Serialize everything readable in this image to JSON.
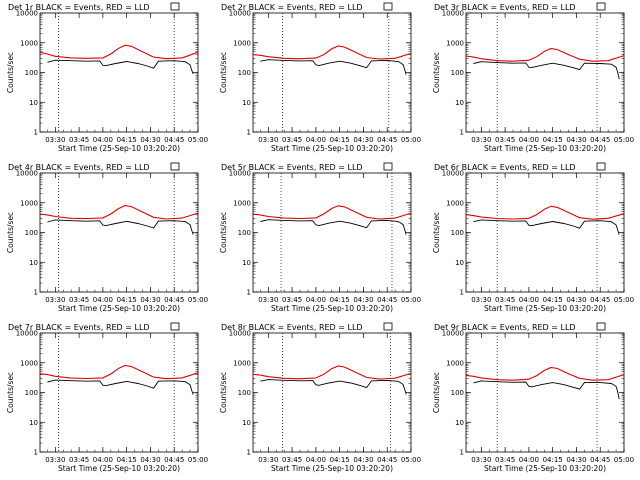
{
  "figure": {
    "xlabel": "Start Time (25-Sep-10 03:20:20)",
    "ylabel": "Counts/sec",
    "x_tick_labels": [
      "03:30",
      "03:45",
      "04:00",
      "04:15",
      "04:30",
      "04:45",
      "05:00"
    ],
    "y_tick_labels": [
      "1",
      "10",
      "100",
      "1000",
      "10000"
    ],
    "colors": {
      "events": "#000000",
      "lld": "#e00000",
      "axes": "#000000",
      "background": "#ffffff"
    }
  },
  "chart_data": [
    {
      "type": "line",
      "title": "Det 1r BLACK = Events, RED = LLD",
      "y_scale": "log",
      "ylim": [
        1,
        10000
      ],
      "x_range": [
        "03:20:20",
        "05:00:00"
      ],
      "vlines": [
        "03:32",
        "04:45"
      ],
      "grid": false,
      "series": [
        {
          "name": "Events",
          "color": "#000000",
          "x": [
            "03:25",
            "03:30",
            "03:40",
            "03:50",
            "03:58",
            "04:00",
            "04:02",
            "04:08",
            "04:15",
            "04:22",
            "04:28",
            "04:32",
            "04:35",
            "04:45",
            "04:52",
            "04:55",
            "04:56",
            "04:57"
          ],
          "values": [
            220,
            260,
            250,
            240,
            245,
            175,
            170,
            200,
            235,
            200,
            165,
            140,
            240,
            250,
            230,
            180,
            120,
            90
          ]
        },
        {
          "name": "LLD",
          "color": "#e00000",
          "x": [
            "03:20",
            "03:25",
            "03:30",
            "03:40",
            "03:50",
            "04:00",
            "04:05",
            "04:10",
            "04:14",
            "04:18",
            "04:25",
            "04:32",
            "04:40",
            "04:50",
            "05:00"
          ],
          "values": [
            480,
            420,
            350,
            310,
            300,
            310,
            420,
            650,
            830,
            760,
            500,
            330,
            290,
            310,
            480
          ]
        }
      ]
    },
    {
      "type": "line",
      "title": "Det 2r BLACK = Events, RED = LLD",
      "y_scale": "log",
      "ylim": [
        1,
        10000
      ],
      "x_range": [
        "03:20:20",
        "05:00:00"
      ],
      "vlines": [
        "03:39",
        "04:46"
      ],
      "grid": false,
      "series": [
        {
          "name": "Events",
          "color": "#000000",
          "x": [
            "03:25",
            "03:30",
            "03:40",
            "03:50",
            "03:58",
            "04:00",
            "04:02",
            "04:08",
            "04:15",
            "04:22",
            "04:28",
            "04:32",
            "04:35",
            "04:45",
            "04:52",
            "04:55",
            "04:56",
            "04:57"
          ],
          "values": [
            240,
            270,
            255,
            245,
            250,
            180,
            172,
            205,
            240,
            205,
            168,
            145,
            245,
            255,
            235,
            185,
            125,
            85
          ]
        },
        {
          "name": "LLD",
          "color": "#e00000",
          "x": [
            "03:20",
            "03:25",
            "03:30",
            "03:40",
            "03:50",
            "04:00",
            "04:05",
            "04:10",
            "04:14",
            "04:18",
            "04:25",
            "04:32",
            "04:40",
            "04:50",
            "05:00"
          ],
          "values": [
            400,
            380,
            340,
            300,
            290,
            305,
            400,
            620,
            780,
            720,
            480,
            320,
            285,
            300,
            440
          ]
        }
      ]
    },
    {
      "type": "line",
      "title": "Det 3r BLACK = Events, RED = LLD",
      "y_scale": "log",
      "ylim": [
        1,
        10000
      ],
      "x_range": [
        "03:20:20",
        "05:00:00"
      ],
      "vlines": [
        "03:40",
        "04:43"
      ],
      "grid": false,
      "series": [
        {
          "name": "Events",
          "color": "#000000",
          "x": [
            "03:25",
            "03:30",
            "03:40",
            "03:50",
            "03:58",
            "04:00",
            "04:02",
            "04:08",
            "04:15",
            "04:22",
            "04:28",
            "04:32",
            "04:35",
            "04:45",
            "04:52",
            "04:55",
            "04:56",
            "04:57"
          ],
          "values": [
            200,
            230,
            215,
            205,
            210,
            150,
            148,
            175,
            205,
            175,
            145,
            125,
            205,
            200,
            190,
            150,
            100,
            60
          ]
        },
        {
          "name": "LLD",
          "color": "#e00000",
          "x": [
            "03:20",
            "03:25",
            "03:30",
            "03:40",
            "03:50",
            "04:00",
            "04:05",
            "04:10",
            "04:14",
            "04:18",
            "04:25",
            "04:32",
            "04:40",
            "04:50",
            "05:00"
          ],
          "values": [
            360,
            330,
            290,
            250,
            240,
            260,
            340,
            520,
            640,
            590,
            400,
            280,
            240,
            250,
            370
          ]
        }
      ]
    },
    {
      "type": "line",
      "title": "Det 4r BLACK = Events, RED = LLD",
      "y_scale": "log",
      "ylim": [
        1,
        10000
      ],
      "x_range": [
        "03:20:20",
        "05:00:00"
      ],
      "vlines": [
        "03:32",
        "04:45"
      ],
      "grid": false,
      "series": [
        {
          "name": "Events",
          "color": "#000000",
          "x": [
            "03:25",
            "03:30",
            "03:40",
            "03:50",
            "03:58",
            "04:00",
            "04:02",
            "04:08",
            "04:15",
            "04:22",
            "04:28",
            "04:32",
            "04:35",
            "04:45",
            "04:52",
            "04:55",
            "04:56",
            "04:57"
          ],
          "values": [
            225,
            265,
            250,
            240,
            248,
            178,
            170,
            200,
            238,
            200,
            166,
            142,
            242,
            250,
            232,
            182,
            120,
            85
          ]
        },
        {
          "name": "LLD",
          "color": "#e00000",
          "x": [
            "03:20",
            "03:25",
            "03:30",
            "03:40",
            "03:50",
            "04:00",
            "04:05",
            "04:10",
            "04:14",
            "04:18",
            "04:25",
            "04:32",
            "04:40",
            "04:50",
            "05:00"
          ],
          "values": [
            420,
            390,
            345,
            300,
            295,
            310,
            420,
            640,
            800,
            740,
            490,
            325,
            285,
            305,
            450
          ]
        }
      ]
    },
    {
      "type": "line",
      "title": "Det 5r BLACK = Events, RED = LLD",
      "y_scale": "log",
      "ylim": [
        1,
        10000
      ],
      "x_range": [
        "03:20:20",
        "05:00:00"
      ],
      "vlines": [
        "03:38",
        "04:48"
      ],
      "grid": false,
      "series": [
        {
          "name": "Events",
          "color": "#000000",
          "x": [
            "03:25",
            "03:30",
            "03:40",
            "03:50",
            "03:58",
            "04:00",
            "04:02",
            "04:08",
            "04:15",
            "04:22",
            "04:28",
            "04:32",
            "04:35",
            "04:45",
            "04:52",
            "04:55",
            "04:56",
            "04:57"
          ],
          "values": [
            235,
            270,
            255,
            245,
            250,
            180,
            172,
            205,
            240,
            205,
            168,
            145,
            245,
            255,
            235,
            185,
            125,
            85
          ]
        },
        {
          "name": "LLD",
          "color": "#e00000",
          "x": [
            "03:20",
            "03:25",
            "03:30",
            "03:40",
            "03:50",
            "04:00",
            "04:05",
            "04:10",
            "04:14",
            "04:18",
            "04:25",
            "04:32",
            "04:40",
            "04:50",
            "05:00"
          ],
          "values": [
            420,
            390,
            345,
            305,
            295,
            310,
            420,
            640,
            790,
            730,
            490,
            325,
            285,
            305,
            450
          ]
        }
      ]
    },
    {
      "type": "line",
      "title": "Det 6r BLACK = Events, RED = LLD",
      "y_scale": "log",
      "ylim": [
        1,
        10000
      ],
      "x_range": [
        "03:20:20",
        "05:00:00"
      ],
      "vlines": [
        "03:40",
        "04:43"
      ],
      "grid": false,
      "series": [
        {
          "name": "Events",
          "color": "#000000",
          "x": [
            "03:25",
            "03:30",
            "03:40",
            "03:50",
            "03:58",
            "04:00",
            "04:02",
            "04:08",
            "04:15",
            "04:22",
            "04:28",
            "04:32",
            "04:35",
            "04:45",
            "04:52",
            "04:55",
            "04:56",
            "04:57"
          ],
          "values": [
            230,
            265,
            250,
            240,
            245,
            175,
            170,
            200,
            235,
            200,
            165,
            140,
            240,
            250,
            230,
            180,
            120,
            85
          ]
        },
        {
          "name": "LLD",
          "color": "#e00000",
          "x": [
            "03:20",
            "03:25",
            "03:30",
            "03:40",
            "03:50",
            "04:00",
            "04:05",
            "04:10",
            "04:14",
            "04:18",
            "04:25",
            "04:32",
            "04:40",
            "04:50",
            "05:00"
          ],
          "values": [
            400,
            370,
            330,
            295,
            285,
            300,
            400,
            610,
            760,
            700,
            470,
            315,
            280,
            300,
            430
          ]
        }
      ]
    },
    {
      "type": "line",
      "title": "Det 7r BLACK = Events, RED = LLD",
      "y_scale": "log",
      "ylim": [
        1,
        10000
      ],
      "x_range": [
        "03:20:20",
        "05:00:00"
      ],
      "vlines": [
        "03:32",
        "04:45"
      ],
      "grid": false,
      "series": [
        {
          "name": "Events",
          "color": "#000000",
          "x": [
            "03:25",
            "03:30",
            "03:40",
            "03:50",
            "03:58",
            "04:00",
            "04:02",
            "04:08",
            "04:15",
            "04:22",
            "04:28",
            "04:32",
            "04:35",
            "04:45",
            "04:52",
            "04:55",
            "04:56",
            "04:57"
          ],
          "values": [
            225,
            262,
            250,
            240,
            246,
            176,
            170,
            200,
            236,
            200,
            165,
            140,
            240,
            248,
            230,
            180,
            118,
            85
          ]
        },
        {
          "name": "LLD",
          "color": "#e00000",
          "x": [
            "03:20",
            "03:25",
            "03:30",
            "03:40",
            "03:50",
            "04:00",
            "04:05",
            "04:10",
            "04:14",
            "04:18",
            "04:25",
            "04:32",
            "04:40",
            "04:50",
            "05:00"
          ],
          "values": [
            430,
            400,
            350,
            305,
            295,
            310,
            420,
            650,
            810,
            750,
            495,
            330,
            290,
            310,
            460
          ]
        }
      ]
    },
    {
      "type": "line",
      "title": "Det 8r BLACK = Events, RED = LLD",
      "y_scale": "log",
      "ylim": [
        1,
        10000
      ],
      "x_range": [
        "03:20:20",
        "05:00:00"
      ],
      "vlines": [
        "03:39",
        "04:47"
      ],
      "grid": false,
      "series": [
        {
          "name": "Events",
          "color": "#000000",
          "x": [
            "03:25",
            "03:30",
            "03:40",
            "03:50",
            "03:58",
            "04:00",
            "04:02",
            "04:08",
            "04:15",
            "04:22",
            "04:28",
            "04:32",
            "04:35",
            "04:45",
            "04:52",
            "04:55",
            "04:56",
            "04:57"
          ],
          "values": [
            240,
            272,
            258,
            248,
            252,
            182,
            174,
            208,
            242,
            208,
            170,
            146,
            246,
            256,
            238,
            186,
            126,
            88
          ]
        },
        {
          "name": "LLD",
          "color": "#e00000",
          "x": [
            "03:20",
            "03:25",
            "03:30",
            "03:40",
            "03:50",
            "04:00",
            "04:05",
            "04:10",
            "04:14",
            "04:18",
            "04:25",
            "04:32",
            "04:40",
            "04:50",
            "05:00"
          ],
          "values": [
            410,
            385,
            340,
            300,
            292,
            308,
            410,
            630,
            780,
            720,
            480,
            322,
            283,
            302,
            440
          ]
        }
      ]
    },
    {
      "type": "line",
      "title": "Det 9r BLACK = Events, RED = LLD",
      "y_scale": "log",
      "ylim": [
        1,
        10000
      ],
      "x_range": [
        "03:20:20",
        "05:00:00"
      ],
      "vlines": [
        "03:40",
        "04:43"
      ],
      "grid": false,
      "series": [
        {
          "name": "Events",
          "color": "#000000",
          "x": [
            "03:25",
            "03:30",
            "03:40",
            "03:50",
            "03:58",
            "04:00",
            "04:02",
            "04:08",
            "04:15",
            "04:22",
            "04:28",
            "04:32",
            "04:35",
            "04:45",
            "04:52",
            "04:55",
            "04:56",
            "04:57"
          ],
          "values": [
            210,
            245,
            230,
            220,
            225,
            160,
            155,
            185,
            215,
            185,
            150,
            130,
            215,
            215,
            200,
            160,
            105,
            60
          ]
        },
        {
          "name": "LLD",
          "color": "#e00000",
          "x": [
            "03:20",
            "03:25",
            "03:30",
            "03:40",
            "03:50",
            "04:00",
            "04:05",
            "04:10",
            "04:14",
            "04:18",
            "04:25",
            "04:32",
            "04:40",
            "04:50",
            "05:00"
          ],
          "values": [
            380,
            350,
            310,
            270,
            260,
            280,
            370,
            560,
            690,
            640,
            430,
            300,
            260,
            270,
            400
          ]
        }
      ]
    }
  ]
}
